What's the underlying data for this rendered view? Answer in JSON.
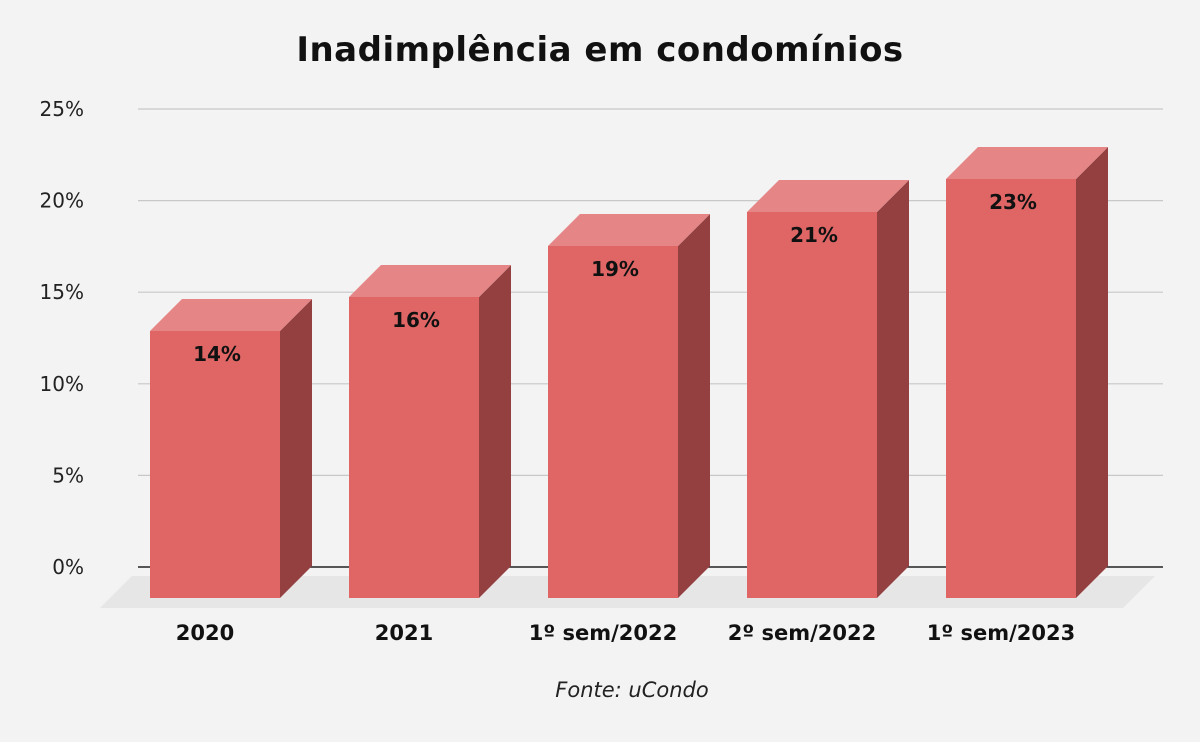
{
  "chart_data": {
    "type": "bar",
    "title": "Inadimplência em condomínios",
    "categories": [
      "2020",
      "2021",
      "1º sem/2022",
      "2º sem/2022",
      "1º sem/2023"
    ],
    "values": [
      14,
      16,
      19,
      21,
      23
    ],
    "value_labels": [
      "14%",
      "16%",
      "19%",
      "21%",
      "23%"
    ],
    "y_ticks": [
      {
        "value": 0,
        "label": "0%"
      },
      {
        "value": 5,
        "label": "5%"
      },
      {
        "value": 10,
        "label": "10%"
      },
      {
        "value": 15,
        "label": "15%"
      },
      {
        "value": 20,
        "label": "20%"
      },
      {
        "value": 25,
        "label": "25%"
      }
    ],
    "ylim": [
      0,
      25
    ],
    "xlabel": "",
    "ylabel": "",
    "grid": true,
    "legend": "none",
    "style": "3d-column",
    "source": "Fonte: uCondo",
    "colors": {
      "bar_front": "#e06666",
      "bar_top": "#e68585",
      "bar_side": "#944040",
      "grid": "#c8c8c8",
      "axis": "#222222",
      "floor": "#e6e6e6",
      "background": "#f3f3f3"
    }
  }
}
